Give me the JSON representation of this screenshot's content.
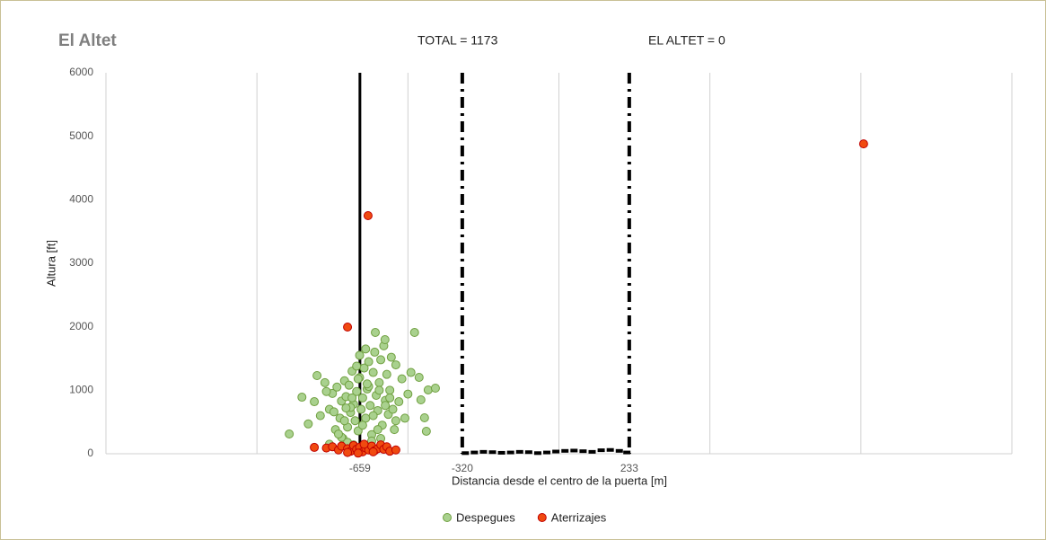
{
  "chart_data": {
    "type": "scatter",
    "title": "El Altet",
    "annotations": [
      "TOTAL = 1173",
      "EL ALTET = 0"
    ],
    "xlabel": "Distancia desde el centro de la puerta [m]",
    "ylabel": "Altura [ft]",
    "xlim": [
      -1500,
      1500
    ],
    "ylim": [
      0,
      6000
    ],
    "xgrid": [
      -1500,
      -1000,
      -500,
      0,
      500,
      1000,
      1500
    ],
    "xticks": [
      -659,
      -320,
      233
    ],
    "xtick_line_styles": [
      "solid",
      "dash-dot",
      "dash-dot"
    ],
    "yticks": [
      0,
      1000,
      2000,
      3000,
      4000,
      5000,
      6000
    ],
    "grid": true,
    "legend": "bottom",
    "series": [
      {
        "name": "Despegues",
        "color": "#a9d18e",
        "edgecolor": "#70a040",
        "marker": "circle",
        "x": [
          -893,
          -851,
          -801,
          -830,
          -810,
          -790,
          -775,
          -760,
          -750,
          -740,
          -735,
          -725,
          -720,
          -715,
          -710,
          -705,
          -700,
          -695,
          -690,
          -685,
          -680,
          -675,
          -670,
          -665,
          -660,
          -655,
          -650,
          -645,
          -640,
          -635,
          -630,
          -625,
          -620,
          -615,
          -610,
          -605,
          -600,
          -595,
          -590,
          -585,
          -580,
          -575,
          -570,
          -565,
          -560,
          -555,
          -550,
          -545,
          -540,
          -530,
          -520,
          -510,
          -500,
          -490,
          -478,
          -463,
          -457,
          -445,
          -439,
          -433,
          -409,
          -608,
          -576,
          -640,
          -660,
          -700,
          -720,
          -680,
          -650,
          -620,
          -690,
          -710,
          -745,
          -770,
          -600,
          -630,
          -670,
          -590,
          -560,
          -540,
          -760,
          -730,
          -650,
          -615,
          -685,
          -705,
          -635,
          -665,
          -595,
          -575
        ],
        "values": [
          311,
          891,
          1231,
          470,
          820,
          600,
          1120,
          700,
          950,
          380,
          1050,
          560,
          830,
          240,
          1150,
          900,
          420,
          1080,
          650,
          1300,
          780,
          520,
          980,
          360,
          1200,
          700,
          880,
          1350,
          560,
          1020,
          1450,
          760,
          300,
          1280,
          1600,
          920,
          680,
          1120,
          1480,
          450,
          1700,
          840,
          1250,
          620,
          1000,
          1520,
          700,
          380,
          1400,
          820,
          1180,
          560,
          940,
          1280,
          1910,
          1203,
          849,
          566,
          354,
          1005,
          1033,
          1910,
          1797,
          1650,
          1550,
          180,
          260,
          140,
          90,
          200,
          730,
          520,
          660,
          980,
          380,
          1060,
          1380,
          240,
          880,
          520,
          150,
          310,
          450,
          600,
          880,
          720,
          1100,
          1180,
          1000,
          760
        ]
      },
      {
        "name": "Aterrizajes",
        "color": "#f04a10",
        "edgecolor": "#c00000",
        "marker": "circle",
        "x": [
          -632,
          -700,
          1009,
          -810,
          -770,
          -750,
          -730,
          -720,
          -700,
          -690,
          -680,
          -670,
          -660,
          -650,
          -640,
          -630,
          -620,
          -610,
          -600,
          -590,
          -580,
          -570,
          -560,
          -540,
          -700,
          -665,
          -645,
          -615
        ],
        "values": [
          3750,
          1995,
          4880,
          100,
          90,
          110,
          60,
          120,
          80,
          40,
          130,
          70,
          100,
          30,
          90,
          60,
          120,
          50,
          80,
          140,
          70,
          110,
          40,
          60,
          20,
          10,
          150,
          30
        ]
      },
      {
        "color": "#000000",
        "marker": "square",
        "x": [
          -310,
          -280,
          -250,
          -220,
          -190,
          -160,
          -130,
          -100,
          -70,
          -40,
          -10,
          20,
          50,
          80,
          110,
          140,
          170,
          200,
          225
        ],
        "values": [
          10,
          20,
          30,
          25,
          15,
          20,
          30,
          25,
          10,
          20,
          35,
          45,
          50,
          40,
          30,
          55,
          60,
          45,
          20
        ]
      }
    ]
  }
}
